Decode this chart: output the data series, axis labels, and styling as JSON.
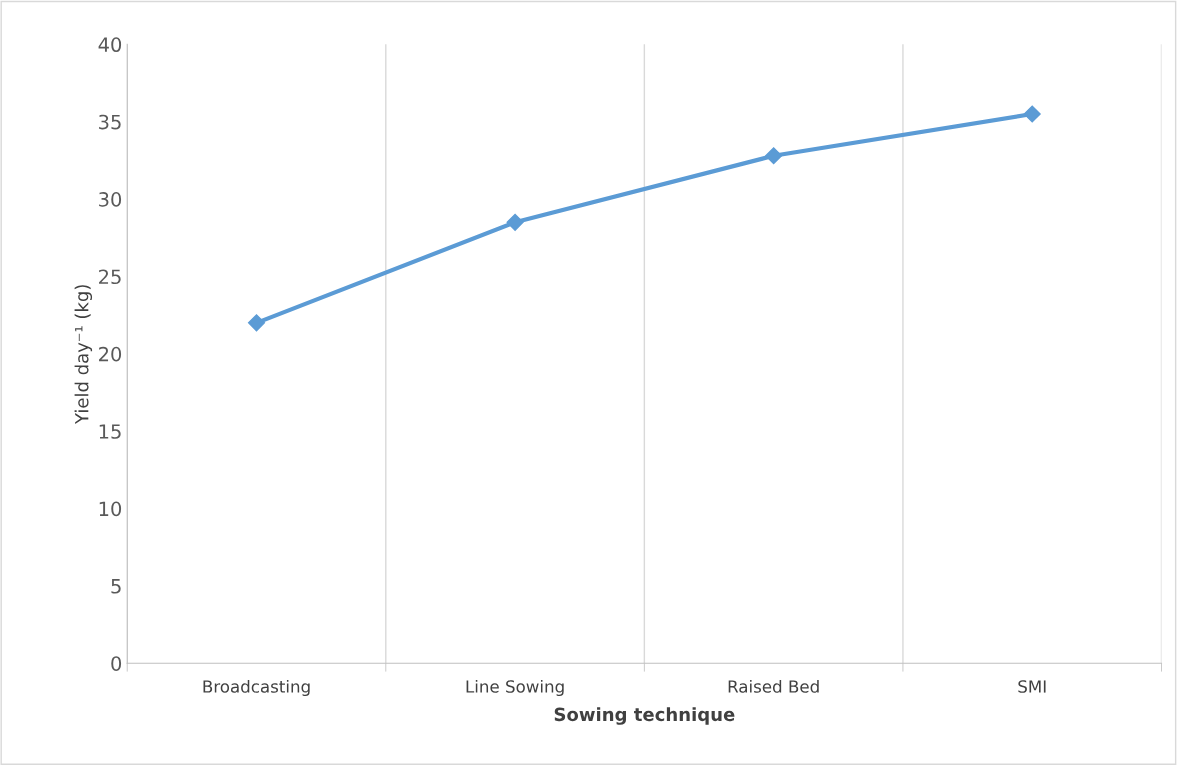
{
  "chart_data": {
    "type": "line",
    "xlabel": "Sowing technique",
    "ylabel": "Yield day⁻¹ (kg)",
    "categories": [
      "Broadcasting",
      "Line Sowing",
      "Raised Bed",
      "SMI"
    ],
    "series": [
      {
        "color": "#5b9bd5",
        "values": [
          22.0,
          28.5,
          32.8,
          35.5
        ]
      }
    ],
    "ylim": [
      0,
      40
    ],
    "yticks": [
      0,
      5,
      10,
      15,
      20,
      25,
      30,
      35,
      40
    ],
    "grid": "x",
    "marker": "diamond",
    "line_style": "solid",
    "legend": false
  }
}
